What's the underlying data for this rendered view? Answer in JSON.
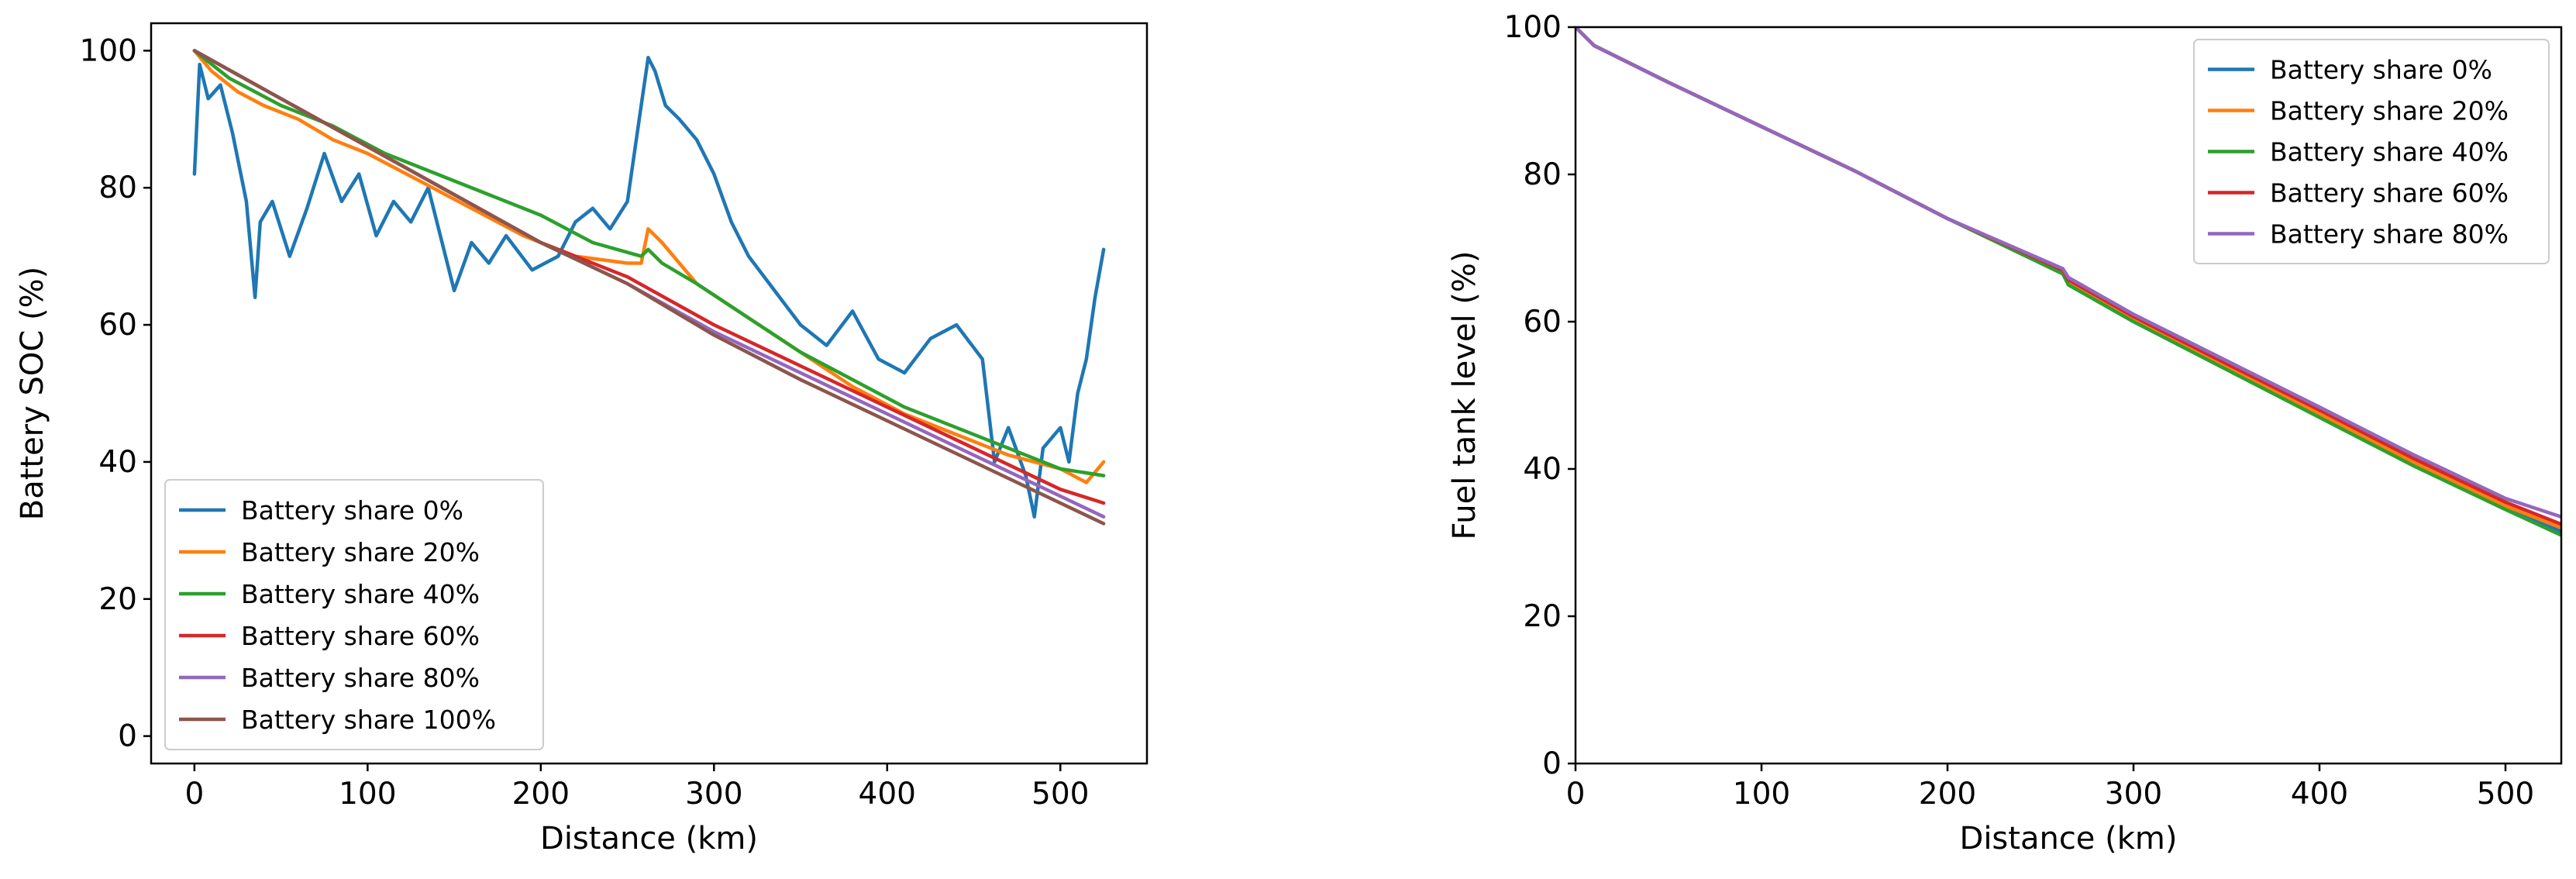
{
  "chart_data": [
    {
      "type": "line",
      "title": "",
      "xlabel": "Distance (km)",
      "ylabel": "Battery SOC (%)",
      "xlim": [
        -25,
        550
      ],
      "ylim": [
        -4,
        104
      ],
      "xticks": [
        0,
        100,
        200,
        300,
        400,
        500
      ],
      "yticks": [
        0,
        20,
        40,
        60,
        80,
        100
      ],
      "grid": false,
      "legend_position": "lower-left",
      "series": [
        {
          "name": "Battery share 0%",
          "color": "#1f77b4",
          "x": [
            0,
            3,
            8,
            15,
            22,
            30,
            35,
            38,
            45,
            55,
            65,
            75,
            85,
            95,
            105,
            115,
            125,
            135,
            145,
            150,
            160,
            170,
            180,
            195,
            210,
            220,
            230,
            240,
            250,
            258,
            262,
            266,
            272,
            280,
            290,
            300,
            310,
            320,
            335,
            350,
            365,
            380,
            395,
            410,
            425,
            440,
            455,
            462,
            470,
            480,
            485,
            490,
            500,
            505,
            510,
            515,
            520,
            525
          ],
          "y": [
            82,
            98,
            93,
            95,
            88,
            78,
            64,
            75,
            78,
            70,
            77,
            85,
            78,
            82,
            73,
            78,
            75,
            80,
            70,
            65,
            72,
            69,
            73,
            68,
            70,
            75,
            77,
            74,
            78,
            92,
            99,
            97,
            92,
            90,
            87,
            82,
            75,
            70,
            65,
            60,
            57,
            62,
            55,
            53,
            58,
            60,
            55,
            40,
            45,
            38,
            32,
            42,
            45,
            40,
            50,
            55,
            64,
            71
          ]
        },
        {
          "name": "Battery share 20%",
          "color": "#ff7f0e",
          "x": [
            0,
            10,
            25,
            40,
            60,
            80,
            100,
            130,
            160,
            190,
            220,
            250,
            258,
            262,
            270,
            290,
            320,
            350,
            380,
            410,
            440,
            470,
            500,
            515,
            525
          ],
          "y": [
            100,
            97,
            94,
            92,
            90,
            87,
            85,
            81,
            77,
            73,
            70,
            69,
            69,
            74,
            72,
            66,
            61,
            56,
            51,
            47,
            44,
            41,
            39,
            37,
            40
          ]
        },
        {
          "name": "Battery share 40%",
          "color": "#2ca02c",
          "x": [
            0,
            20,
            50,
            80,
            110,
            140,
            170,
            200,
            230,
            258,
            262,
            270,
            290,
            320,
            350,
            380,
            410,
            440,
            470,
            500,
            525
          ],
          "y": [
            100,
            96,
            92,
            89,
            85,
            82,
            79,
            76,
            72,
            70,
            71,
            69,
            66,
            61,
            56,
            52,
            48,
            45,
            42,
            39,
            38
          ]
        },
        {
          "name": "Battery share 60%",
          "color": "#d62728",
          "x": [
            0,
            50,
            100,
            150,
            200,
            250,
            300,
            350,
            400,
            450,
            500,
            525
          ],
          "y": [
            100,
            93,
            86,
            79,
            72,
            67,
            60,
            54,
            48,
            42,
            36,
            34
          ]
        },
        {
          "name": "Battery share 80%",
          "color": "#9467bd",
          "x": [
            0,
            50,
            100,
            150,
            200,
            250,
            300,
            350,
            400,
            450,
            500,
            525
          ],
          "y": [
            100,
            93,
            86,
            79,
            72,
            66,
            59,
            53,
            47,
            41,
            35,
            32
          ]
        },
        {
          "name": "Battery share 100%",
          "color": "#8c564b",
          "x": [
            0,
            50,
            100,
            150,
            200,
            250,
            300,
            350,
            400,
            450,
            500,
            525
          ],
          "y": [
            100,
            93,
            86,
            79,
            72,
            66,
            58.5,
            52,
            46,
            40,
            34,
            31
          ]
        }
      ]
    },
    {
      "type": "line",
      "title": "",
      "xlabel": "Distance (km)",
      "ylabel": "Fuel tank level (%)",
      "xlim": [
        0,
        530
      ],
      "ylim": [
        0,
        100
      ],
      "xticks": [
        0,
        100,
        200,
        300,
        400,
        500
      ],
      "yticks": [
        0,
        20,
        40,
        60,
        80,
        100
      ],
      "grid": false,
      "legend_position": "upper-right",
      "series": [
        {
          "name": "Battery share 0%",
          "color": "#1f77b4",
          "x": [
            0,
            10,
            50,
            100,
            150,
            200,
            262,
            265,
            300,
            350,
            400,
            450,
            500,
            530
          ],
          "y": [
            100,
            97.5,
            92.5,
            86.5,
            80.5,
            74,
            67,
            65.5,
            60.5,
            54,
            47.5,
            41,
            35,
            31.5
          ]
        },
        {
          "name": "Battery share 20%",
          "color": "#ff7f0e",
          "x": [
            0,
            10,
            50,
            100,
            150,
            200,
            262,
            265,
            300,
            350,
            400,
            450,
            500,
            530
          ],
          "y": [
            100,
            97.5,
            92.5,
            86.5,
            80.5,
            74,
            67,
            65.5,
            60.5,
            54,
            47.5,
            41,
            35,
            32
          ]
        },
        {
          "name": "Battery share 40%",
          "color": "#2ca02c",
          "x": [
            0,
            10,
            50,
            100,
            150,
            200,
            262,
            265,
            300,
            350,
            400,
            450,
            500,
            530
          ],
          "y": [
            100,
            97.5,
            92.5,
            86.5,
            80.5,
            74,
            66.5,
            65,
            60,
            53.5,
            47,
            40.5,
            34.5,
            31
          ]
        },
        {
          "name": "Battery share 60%",
          "color": "#d62728",
          "x": [
            0,
            10,
            50,
            100,
            150,
            200,
            262,
            265,
            300,
            350,
            400,
            450,
            500,
            530
          ],
          "y": [
            100,
            97.5,
            92.5,
            86.5,
            80.5,
            74,
            67,
            65.7,
            60.7,
            54.3,
            48,
            41.5,
            35.5,
            32.5
          ]
        },
        {
          "name": "Battery share 80%",
          "color": "#9467bd",
          "x": [
            0,
            10,
            50,
            100,
            150,
            200,
            262,
            265,
            300,
            350,
            400,
            450,
            500,
            530
          ],
          "y": [
            100,
            97.5,
            92.5,
            86.5,
            80.5,
            74,
            67.2,
            66,
            61,
            54.7,
            48.4,
            42,
            36,
            33.5
          ]
        }
      ]
    }
  ]
}
